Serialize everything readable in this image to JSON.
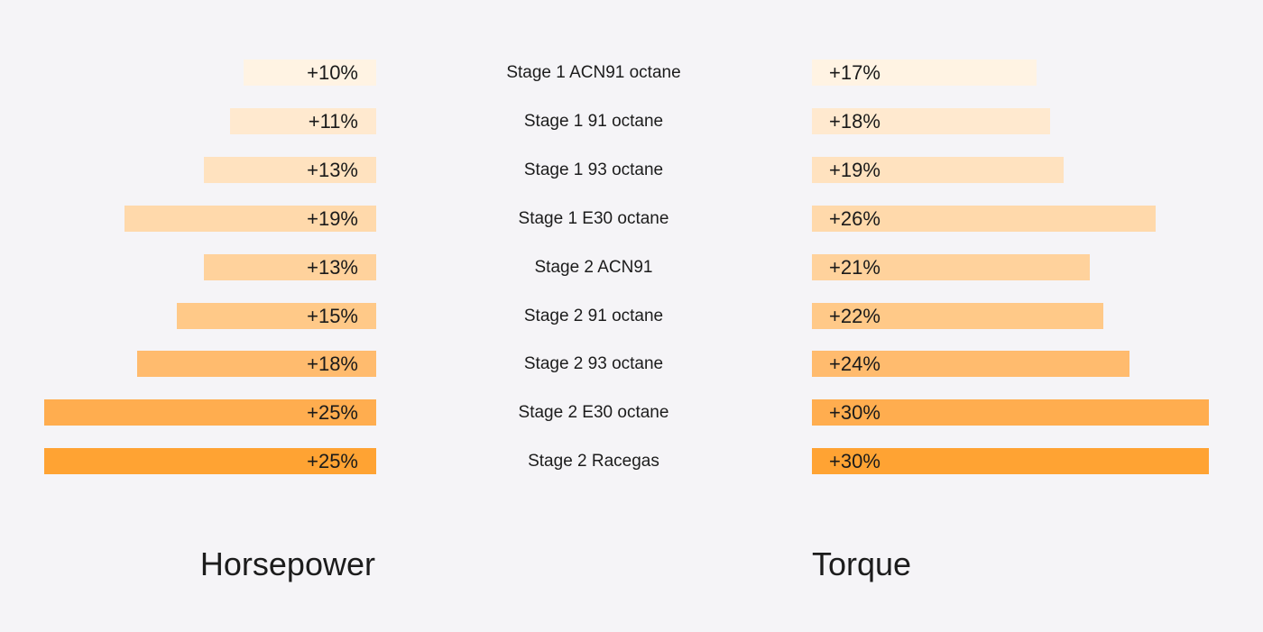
{
  "chart_data": {
    "type": "bar",
    "orientation": "horizontal-diverging",
    "categories": [
      "Stage 1 ACN91 octane",
      "Stage 1 91 octane",
      "Stage 1 93 octane",
      "Stage 1 E30 octane",
      "Stage 2 ACN91",
      "Stage 2 91 octane",
      "Stage 2 93 octane",
      "Stage 2 E30 octane",
      "Stage 2 Racegas"
    ],
    "series": [
      {
        "name": "Horsepower",
        "values": [
          10,
          11,
          13,
          19,
          13,
          15,
          18,
          25,
          25
        ],
        "labels": [
          "+10%",
          "+11%",
          "+13%",
          "+19%",
          "+13%",
          "+15%",
          "+18%",
          "+25%",
          "+25%"
        ]
      },
      {
        "name": "Torque",
        "values": [
          17,
          18,
          19,
          26,
          21,
          22,
          24,
          30,
          30
        ],
        "labels": [
          "+17%",
          "+18%",
          "+19%",
          "+26%",
          "+21%",
          "+22%",
          "+24%",
          "+30%",
          "+30%"
        ]
      }
    ],
    "bar_colors": [
      "#fff3e3",
      "#ffe9cf",
      "#ffe2bf",
      "#ffd9ab",
      "#ffd29c",
      "#ffc988",
      "#ffbb6e",
      "#ffad4f",
      "#ffa333"
    ],
    "unit": "%",
    "grid": false,
    "legend": "none"
  }
}
